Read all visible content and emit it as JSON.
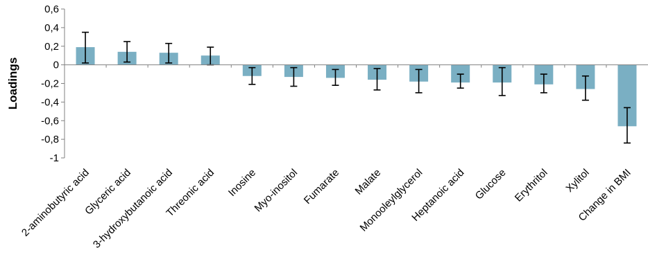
{
  "chart_data": {
    "type": "bar",
    "title": "",
    "xlabel": "",
    "ylabel": "Loadings",
    "ylim": [
      -1,
      0.6
    ],
    "yticks": [
      0.6,
      0.4,
      0.2,
      0,
      -0.2,
      -0.4,
      -0.6,
      -0.8,
      -1
    ],
    "ytick_labels": [
      "0,6",
      "0,4",
      "0,2",
      "0",
      "-0,2",
      "-0,4",
      "-0,6",
      "-0,8",
      "-1"
    ],
    "grid": false,
    "legend": "none",
    "bar_color": "#7aafc3",
    "categories": [
      "2-aminobutyric acid",
      "Glyceric acid",
      "3-hydroxybutanoic acid",
      "Threonic acid",
      "Inosine",
      "Myo-inositol",
      "Fumarate",
      "Malate",
      "Monooleylglycerol",
      "Heptanoic acid",
      "Glucose",
      "Erythritol",
      "Xylitol",
      "Change in BMI"
    ],
    "values": [
      0.19,
      0.14,
      0.13,
      0.1,
      -0.12,
      -0.13,
      -0.14,
      -0.16,
      -0.18,
      -0.19,
      -0.19,
      -0.21,
      -0.26,
      -0.66
    ],
    "error_upper": [
      0.35,
      0.25,
      0.23,
      0.19,
      -0.03,
      -0.03,
      -0.05,
      -0.04,
      -0.05,
      -0.1,
      -0.03,
      -0.1,
      -0.12,
      -0.46
    ],
    "error_lower": [
      0.02,
      0.03,
      0.02,
      0.0,
      -0.21,
      -0.23,
      -0.22,
      -0.27,
      -0.3,
      -0.25,
      -0.33,
      -0.3,
      -0.38,
      -0.84
    ]
  }
}
